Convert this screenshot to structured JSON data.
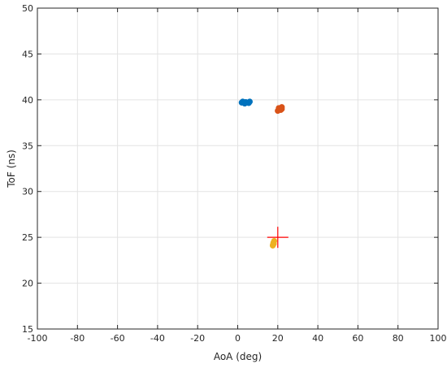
{
  "chart_data": {
    "type": "scatter",
    "title": "",
    "xlabel": "AoA (deg)",
    "ylabel": "ToF (ns)",
    "xlim": [
      -100,
      100
    ],
    "ylim": [
      15,
      50
    ],
    "xticks": [
      -100,
      -80,
      -60,
      -40,
      -20,
      0,
      20,
      40,
      60,
      80,
      100
    ],
    "yticks": [
      15,
      20,
      25,
      30,
      35,
      40,
      45,
      50
    ],
    "grid": true,
    "series": [
      {
        "color": "#0072BD",
        "points": [
          [
            2,
            39.7
          ],
          [
            3,
            39.7
          ],
          [
            4,
            39.75
          ],
          [
            5,
            39.7
          ],
          [
            6,
            39.8
          ],
          [
            3.5,
            39.6
          ],
          [
            5.5,
            39.65
          ],
          [
            2.5,
            39.8
          ]
        ]
      },
      {
        "color": "#D95319",
        "points": [
          [
            20,
            38.8
          ],
          [
            21,
            39.0
          ],
          [
            22,
            39.2
          ],
          [
            20.5,
            39.1
          ],
          [
            21.5,
            38.9
          ],
          [
            22,
            39.0
          ]
        ]
      },
      {
        "color": "#EDB120",
        "points": [
          [
            17.5,
            24.1
          ],
          [
            17.8,
            24.4
          ],
          [
            18.2,
            24.6
          ],
          [
            17.6,
            24.2
          ],
          [
            18.0,
            24.3
          ]
        ]
      }
    ],
    "marker": {
      "type": "plus",
      "color": "#FF0000",
      "x": 20,
      "y": 25
    }
  }
}
